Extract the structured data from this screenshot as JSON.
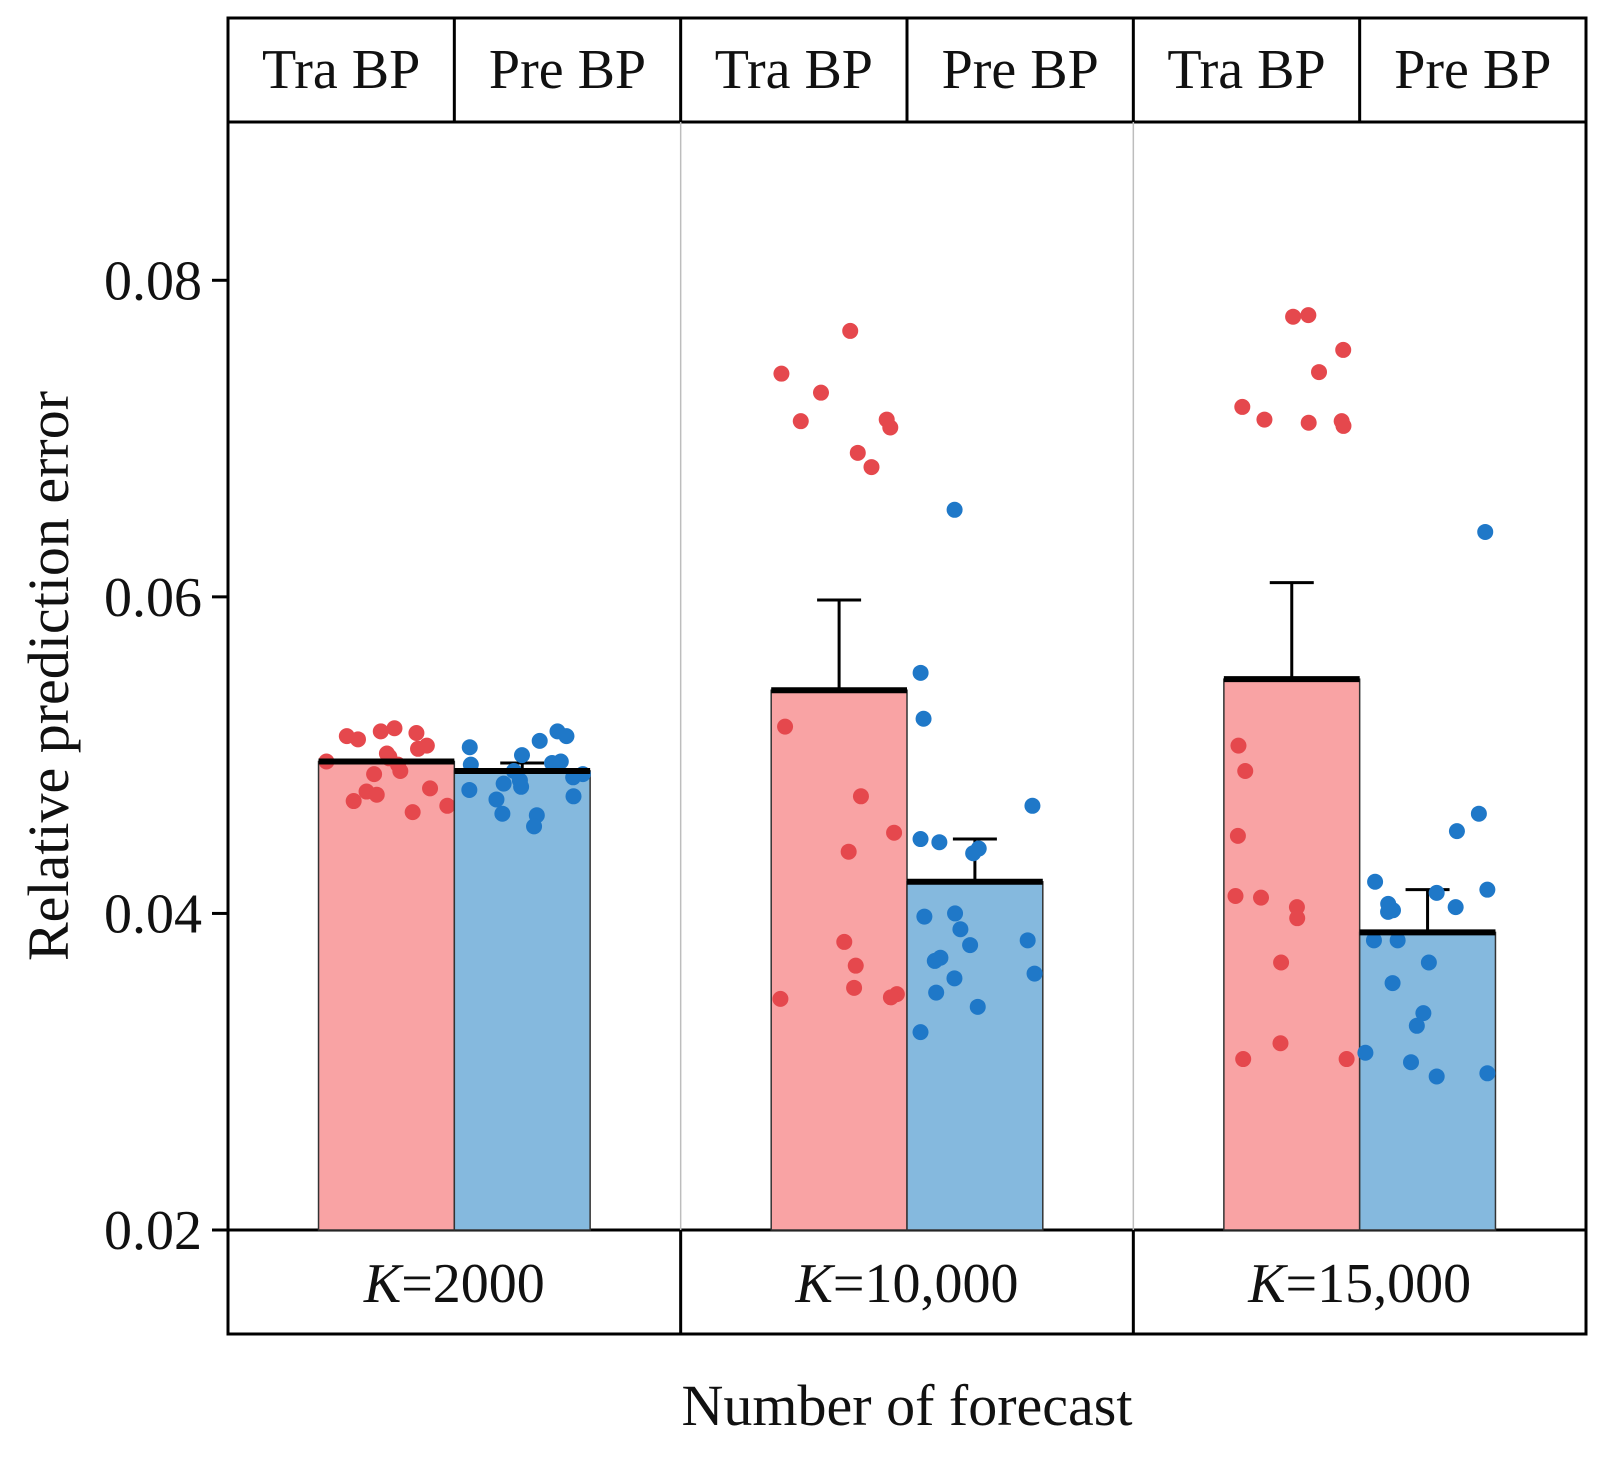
{
  "chart_data": {
    "type": "bar",
    "xlabel": "Number of forecast",
    "ylabel": "Relative prediction error",
    "ylim": [
      0.02,
      0.09
    ],
    "yticks": [
      {
        "value": 0.02,
        "label": "0.02"
      },
      {
        "value": 0.04,
        "label": "0.04"
      },
      {
        "value": 0.06,
        "label": "0.06"
      },
      {
        "value": 0.08,
        "label": "0.08"
      }
    ],
    "series_colors": {
      "Tra BP": "#f9a3a4",
      "Pre BP": "#85b9de"
    },
    "point_colors": {
      "Tra BP": "#e5484d",
      "Pre BP": "#1f78c8"
    },
    "groups": [
      {
        "k_prefix": "K",
        "k_value": "=2000",
        "bars": [
          {
            "label": "Tra BP",
            "mean": 0.0496,
            "error_upper": 0.0496,
            "points": [
              0.0512,
              0.0514,
              0.0517,
              0.0515,
              0.051,
              0.0506,
              0.0504,
              0.0501,
              0.0499,
              0.0498,
              0.0496,
              0.0494,
              0.049,
              0.0488,
              0.0479,
              0.0477,
              0.0475,
              0.0471,
              0.0468,
              0.0464
            ]
          },
          {
            "label": "Pre BP",
            "mean": 0.049,
            "error_upper": 0.0495,
            "points": [
              0.0515,
              0.0512,
              0.0509,
              0.0505,
              0.05,
              0.0496,
              0.0495,
              0.0494,
              0.049,
              0.0488,
              0.0486,
              0.0484,
              0.0482,
              0.048,
              0.0478,
              0.0474,
              0.0472,
              0.0463,
              0.0462,
              0.0455
            ]
          }
        ]
      },
      {
        "k_prefix": "K",
        "k_value": "=10,000",
        "bars": [
          {
            "label": "Tra BP",
            "mean": 0.0541,
            "error_upper": 0.0598,
            "points": [
              0.0768,
              0.0741,
              0.0729,
              0.0712,
              0.0711,
              0.0707,
              0.0691,
              0.0682,
              0.0518,
              0.0474,
              0.0451,
              0.0439,
              0.0382,
              0.0367,
              0.0353,
              0.0349,
              0.0347,
              0.0346
            ]
          },
          {
            "label": "Pre BP",
            "mean": 0.042,
            "error_upper": 0.0447,
            "points": [
              0.0655,
              0.0552,
              0.0523,
              0.0468,
              0.0447,
              0.0445,
              0.0441,
              0.0438,
              0.04,
              0.0398,
              0.039,
              0.0383,
              0.038,
              0.0372,
              0.037,
              0.0362,
              0.0359,
              0.035,
              0.0341,
              0.0325
            ]
          }
        ]
      },
      {
        "k_prefix": "K",
        "k_value": "=15,000",
        "bars": [
          {
            "label": "Tra BP",
            "mean": 0.0548,
            "error_upper": 0.0609,
            "points": [
              0.0778,
              0.0777,
              0.0756,
              0.0742,
              0.072,
              0.0712,
              0.0711,
              0.071,
              0.0708,
              0.0506,
              0.049,
              0.0449,
              0.0411,
              0.041,
              0.0404,
              0.0397,
              0.0369,
              0.0318,
              0.0308,
              0.0308
            ]
          },
          {
            "label": "Pre BP",
            "mean": 0.0388,
            "error_upper": 0.0415,
            "points": [
              0.0641,
              0.0463,
              0.0452,
              0.042,
              0.0415,
              0.0413,
              0.0406,
              0.0404,
              0.0402,
              0.0401,
              0.0383,
              0.0383,
              0.0369,
              0.0356,
              0.0337,
              0.0329,
              0.0312,
              0.0306,
              0.0299,
              0.0297
            ]
          }
        ]
      }
    ]
  }
}
